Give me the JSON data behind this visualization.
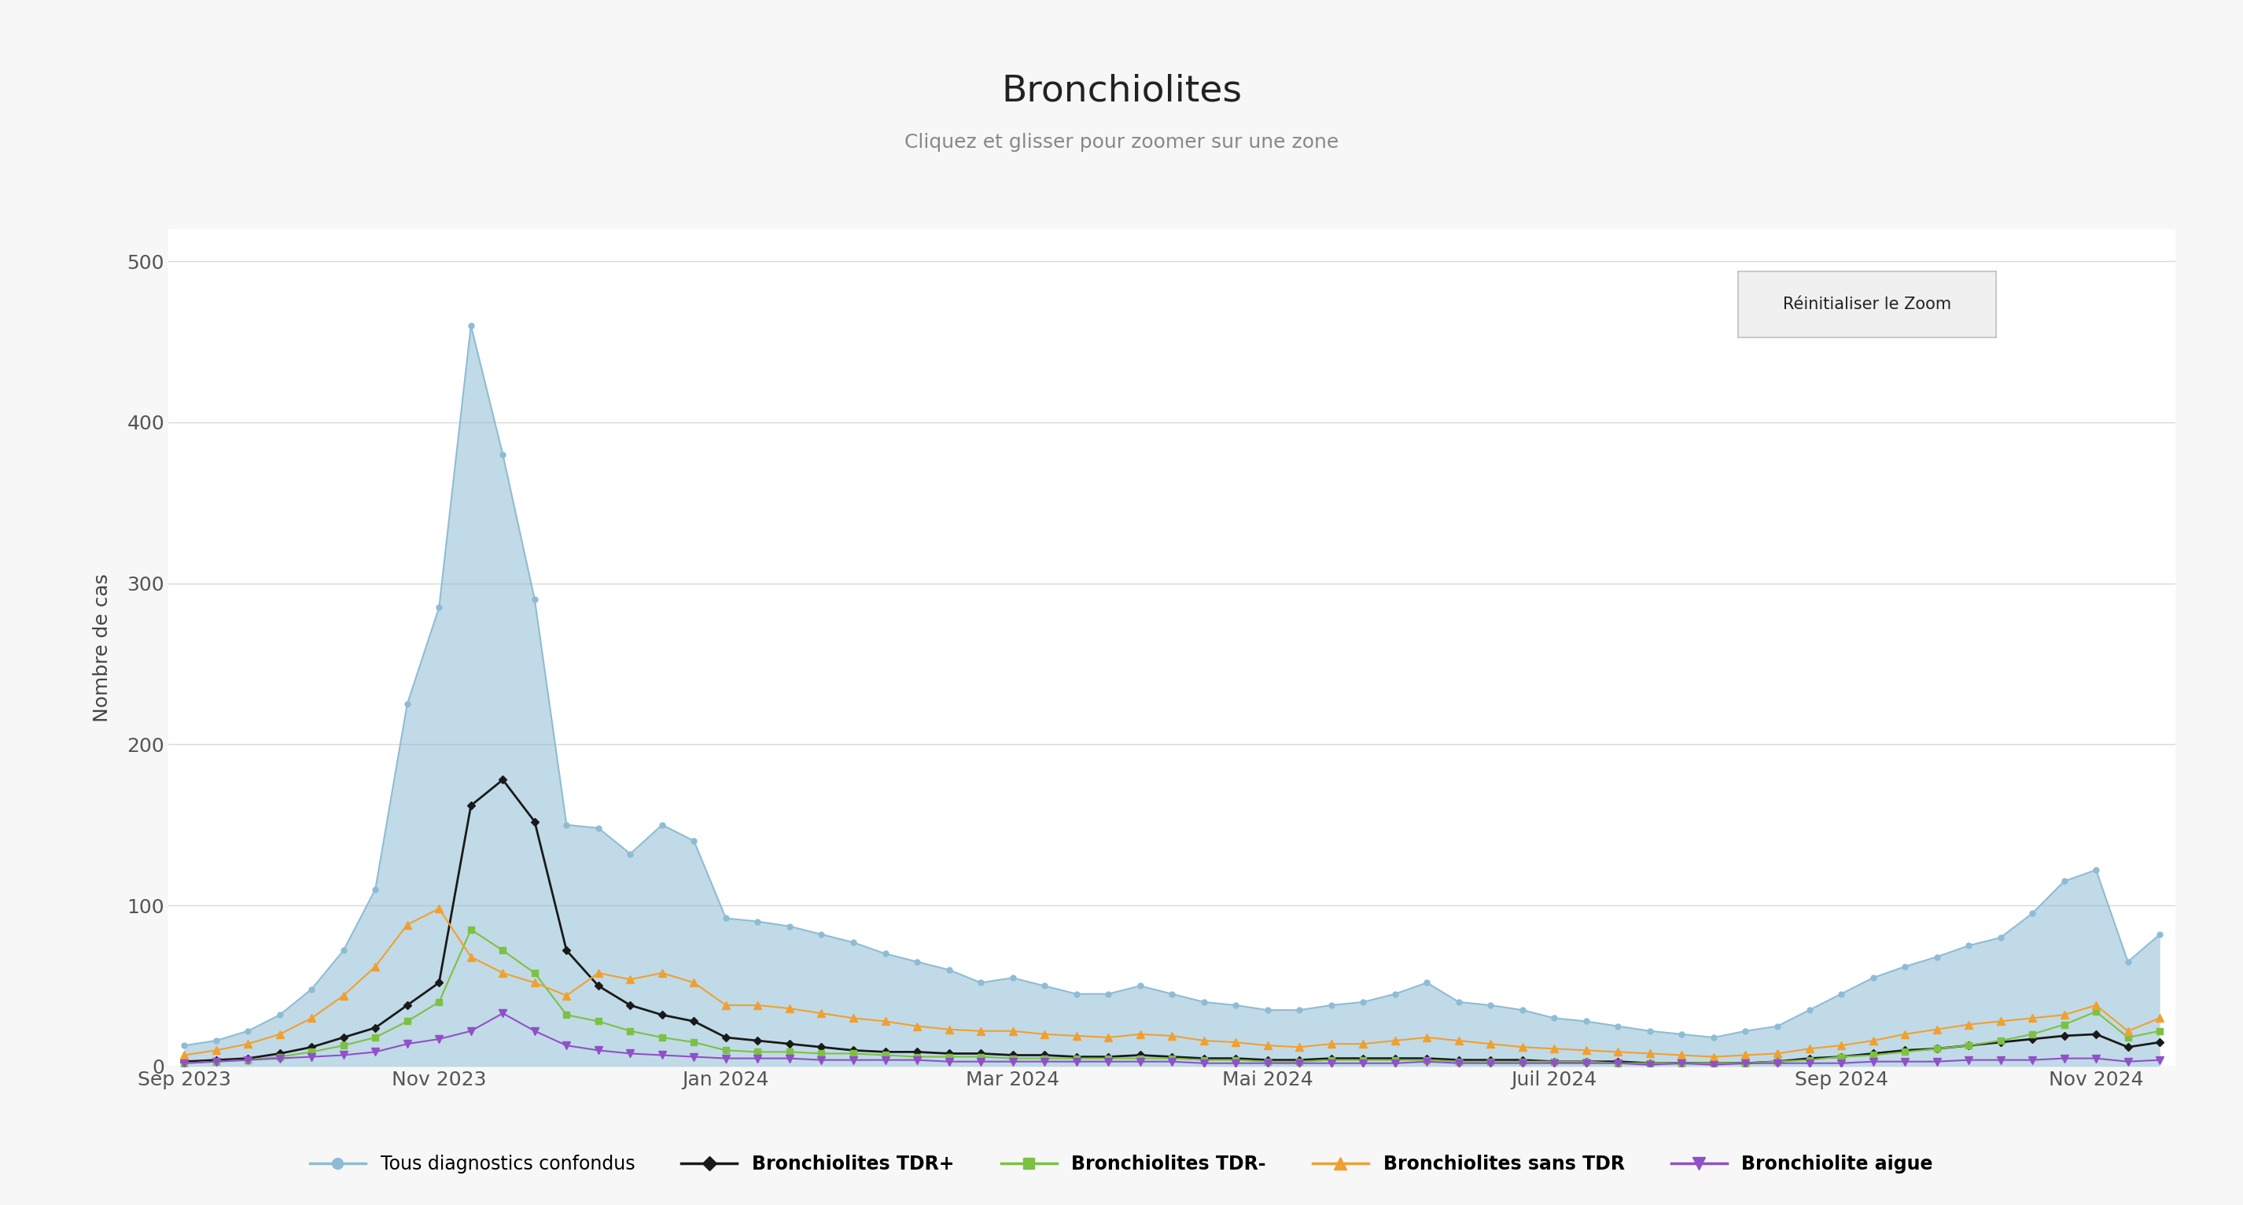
{
  "title": "Bronchiolites",
  "subtitle": "Cliquez et glisser pour zoomer sur une zone",
  "ylabel": "Nombre de cas",
  "button_text": "Réinitialiser le Zoom",
  "background_color": "#f7f7f7",
  "plot_background": "#ffffff",
  "ylim": [
    0,
    520
  ],
  "yticks": [
    0,
    100,
    200,
    300,
    400,
    500
  ],
  "x_labels": [
    "Sep 2023",
    "Nov 2023",
    "Jan 2024",
    "Mar 2024",
    "Mai 2024",
    "Juil 2024",
    "Sep 2024",
    "Nov 2024"
  ],
  "x_positions": [
    0,
    8,
    17,
    26,
    34,
    43,
    52,
    60
  ],
  "n_points": 63,
  "series": {
    "tous": {
      "label": "Tous diagnostics confondus",
      "color": "#8fbcd4",
      "fill_alpha": 0.55,
      "marker": "o",
      "marker_size": 5,
      "linewidth": 1.5,
      "values": [
        13,
        16,
        22,
        32,
        48,
        72,
        110,
        225,
        285,
        460,
        380,
        290,
        150,
        148,
        132,
        150,
        140,
        92,
        90,
        87,
        82,
        77,
        70,
        65,
        60,
        52,
        55,
        50,
        45,
        45,
        50,
        45,
        40,
        38,
        35,
        35,
        38,
        40,
        45,
        52,
        40,
        38,
        35,
        30,
        28,
        25,
        22,
        20,
        18,
        22,
        25,
        35,
        45,
        55,
        62,
        68,
        75,
        80,
        95,
        115,
        122,
        65,
        82
      ]
    },
    "tdr_plus": {
      "label": "Bronchiolites TDR+",
      "color": "#1a1a1a",
      "marker": "D",
      "marker_size": 5,
      "linewidth": 2.0,
      "values": [
        3,
        4,
        5,
        8,
        12,
        18,
        24,
        38,
        52,
        162,
        178,
        152,
        72,
        50,
        38,
        32,
        28,
        18,
        16,
        14,
        12,
        10,
        9,
        9,
        8,
        8,
        7,
        7,
        6,
        6,
        7,
        6,
        5,
        5,
        4,
        4,
        5,
        5,
        5,
        5,
        4,
        4,
        4,
        3,
        3,
        3,
        2,
        2,
        2,
        2,
        3,
        5,
        6,
        8,
        10,
        11,
        13,
        15,
        17,
        19,
        20,
        12,
        15
      ]
    },
    "tdr_minus": {
      "label": "Bronchiolites TDR-",
      "color": "#7cc142",
      "marker": "s",
      "marker_size": 6,
      "linewidth": 1.5,
      "values": [
        2,
        3,
        4,
        6,
        9,
        13,
        18,
        28,
        40,
        85,
        72,
        58,
        32,
        28,
        22,
        18,
        15,
        10,
        9,
        9,
        8,
        8,
        7,
        6,
        6,
        6,
        5,
        5,
        5,
        5,
        5,
        5,
        4,
        4,
        3,
        3,
        4,
        4,
        4,
        4,
        3,
        3,
        3,
        3,
        3,
        2,
        2,
        2,
        2,
        2,
        3,
        4,
        6,
        7,
        9,
        11,
        13,
        16,
        20,
        26,
        34,
        18,
        22
      ]
    },
    "sans_tdr": {
      "label": "Bronchiolites sans TDR",
      "color": "#f0a030",
      "marker": "^",
      "marker_size": 7,
      "linewidth": 1.5,
      "values": [
        7,
        10,
        14,
        20,
        30,
        44,
        62,
        88,
        98,
        68,
        58,
        52,
        44,
        58,
        54,
        58,
        52,
        38,
        38,
        36,
        33,
        30,
        28,
        25,
        23,
        22,
        22,
        20,
        19,
        18,
        20,
        19,
        16,
        15,
        13,
        12,
        14,
        14,
        16,
        18,
        16,
        14,
        12,
        11,
        10,
        9,
        8,
        7,
        6,
        7,
        8,
        11,
        13,
        16,
        20,
        23,
        26,
        28,
        30,
        32,
        38,
        22,
        30
      ]
    },
    "aigue": {
      "label": "Bronchiolite aigue",
      "color": "#9050c8",
      "marker": "v",
      "marker_size": 7,
      "linewidth": 1.5,
      "values": [
        2,
        3,
        4,
        5,
        6,
        7,
        9,
        14,
        17,
        22,
        33,
        22,
        13,
        10,
        8,
        7,
        6,
        5,
        5,
        5,
        4,
        4,
        4,
        4,
        3,
        3,
        3,
        3,
        3,
        3,
        3,
        3,
        2,
        2,
        2,
        2,
        2,
        2,
        2,
        3,
        2,
        2,
        2,
        2,
        2,
        2,
        1,
        2,
        1,
        2,
        2,
        2,
        2,
        3,
        3,
        3,
        4,
        4,
        4,
        5,
        5,
        3,
        4
      ]
    }
  }
}
